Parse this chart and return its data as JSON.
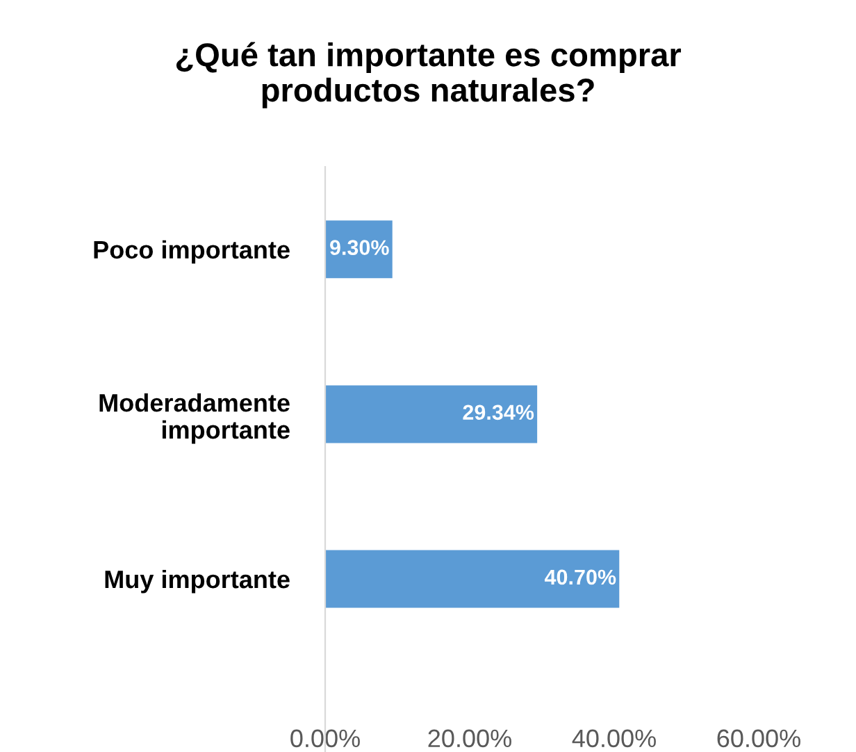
{
  "chart_data": {
    "type": "bar",
    "orientation": "horizontal",
    "title": "¿Qué tan importante es comprar\nproductos naturales?",
    "categories": [
      "Poco importante",
      "Moderadamente\nimportante",
      "Muy importante"
    ],
    "values": [
      9.3,
      29.34,
      40.7
    ],
    "color": "#5b9bd5",
    "value_labels": [
      "9.30%",
      "29.34%",
      "40.70%"
    ],
    "xlim": [
      0,
      60
    ],
    "xticks": [
      {
        "value": 0,
        "label": "0.00%"
      },
      {
        "value": 20,
        "label": "20.00%"
      },
      {
        "value": 40,
        "label": "40.00%"
      },
      {
        "value": 60,
        "label": "60.00%"
      }
    ],
    "grid": false,
    "legend": false
  }
}
